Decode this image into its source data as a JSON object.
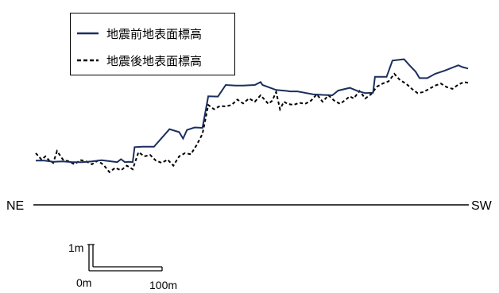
{
  "chart_data": {
    "type": "line",
    "title": "",
    "xlabel": "",
    "ylabel": "",
    "grid": false,
    "legend_position": "top-left",
    "direction_labels": {
      "left": "NE",
      "right": "SW"
    },
    "scale_bar": {
      "vertical_label": "1m",
      "origin_label": "0m",
      "horizontal_label": "100m"
    },
    "x_unit": "m",
    "y_unit": "m",
    "series": [
      {
        "name": "地震前地表面標高",
        "color": "#1b2f5e",
        "style": "solid",
        "x": [
          0,
          9,
          18,
          28,
          38,
          48,
          58,
          68,
          78,
          84,
          88,
          92,
          96,
          100,
          102,
          110,
          122,
          138,
          148,
          152,
          156,
          164,
          172,
          178,
          188,
          196,
          206,
          214,
          226,
          232,
          234,
          248,
          260,
          262,
          270,
          286,
          296,
          306,
          312,
          324,
          332,
          340,
          348,
          350,
          362,
          368,
          380,
          386,
          392,
          396,
          404,
          412,
          422,
          436,
          440,
          446
        ],
        "y": [
          0.95,
          0.95,
          0.9,
          0.92,
          0.88,
          0.88,
          0.92,
          0.97,
          0.92,
          0.88,
          1.02,
          0.88,
          0.9,
          0.88,
          1.58,
          1.6,
          1.6,
          2.42,
          2.28,
          1.98,
          2.38,
          2.5,
          2.48,
          3.95,
          3.94,
          4.48,
          4.45,
          4.45,
          4.48,
          4.62,
          4.48,
          4.25,
          4.2,
          4.18,
          4.18,
          4.05,
          4.02,
          4.0,
          4.22,
          4.35,
          4.2,
          4.1,
          4.12,
          4.86,
          4.86,
          5.62,
          5.68,
          5.38,
          5.1,
          4.8,
          4.8,
          5.0,
          5.15,
          5.4,
          5.32,
          5.25
        ]
      },
      {
        "name": "地震後地表面標高",
        "color": "#000000",
        "style": "dashed",
        "x": [
          0,
          6,
          10,
          14,
          18,
          22,
          28,
          34,
          40,
          46,
          52,
          58,
          64,
          70,
          76,
          82,
          88,
          94,
          100,
          106,
          112,
          118,
          124,
          130,
          136,
          142,
          148,
          154,
          160,
          166,
          172,
          178,
          184,
          190,
          196,
          202,
          208,
          214,
          220,
          226,
          232,
          236,
          240,
          244,
          248,
          252,
          256,
          260,
          266,
          272,
          278,
          284,
          290,
          296,
          302,
          308,
          314,
          320,
          324,
          328,
          334,
          340,
          346,
          352,
          358,
          364,
          370,
          376,
          382,
          388,
          394,
          400,
          406,
          412,
          418,
          424,
          430,
          436,
          442,
          446
        ],
        "y": [
          1.3,
          1.0,
          1.15,
          0.95,
          0.85,
          1.4,
          1.0,
          0.92,
          0.78,
          0.98,
          0.92,
          0.78,
          0.95,
          0.75,
          0.42,
          0.62,
          0.5,
          0.72,
          0.55,
          1.35,
          1.15,
          1.22,
          0.95,
          0.85,
          1.0,
          0.72,
          1.15,
          1.3,
          1.25,
          1.68,
          2.2,
          3.55,
          3.35,
          3.5,
          3.48,
          3.55,
          3.8,
          3.62,
          3.85,
          3.7,
          4.0,
          3.8,
          3.6,
          3.75,
          4.15,
          3.35,
          3.7,
          3.6,
          3.55,
          3.65,
          3.6,
          3.75,
          4.05,
          3.7,
          4.0,
          3.75,
          3.6,
          3.8,
          3.95,
          3.85,
          4.2,
          3.85,
          4.05,
          4.4,
          4.55,
          4.65,
          5.0,
          4.7,
          4.55,
          4.3,
          4.1,
          4.15,
          4.3,
          4.45,
          4.55,
          4.38,
          4.3,
          4.5,
          4.62,
          4.58
        ]
      }
    ]
  }
}
